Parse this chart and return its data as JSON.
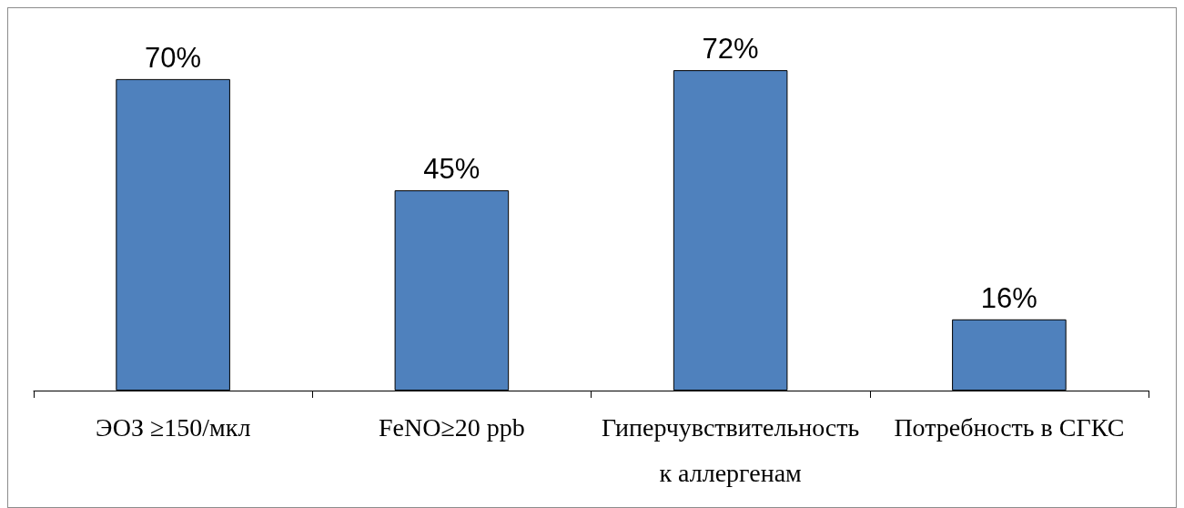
{
  "chart_data": {
    "type": "bar",
    "categories": [
      "ЭОЗ ≥150/мкл",
      "FeNO≥20 ppb",
      "Гиперчувствительность к аллергенам",
      "Потребность в СГКС"
    ],
    "values": [
      70,
      45,
      72,
      16
    ],
    "value_labels": [
      "70%",
      "45%",
      "72%",
      "16%"
    ],
    "color": "#4f81bd",
    "grid": false,
    "tick_labels": "x"
  }
}
